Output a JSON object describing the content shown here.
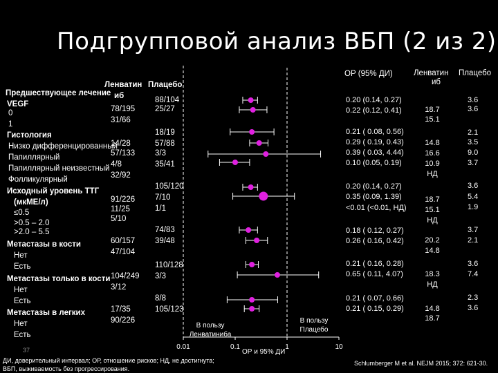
{
  "slide": {
    "title": "Подгрупповой анализ ВБП (2 из 2)",
    "page_number": "37",
    "footnote_line1": "ДИ, доверительный интервал; ОР, отношение рисков; НД, не достигнута;",
    "footnote_line2": "ВБП, выживаемость без прогрессирования.",
    "citation": "Schlumberger M et al. NEJM 2015; 372: 621-30."
  },
  "headers": {
    "lenvatinib": "Ленватин",
    "placebo": "Плацебо",
    "ib": "иб",
    "hr_ci": "ОР (95% ДИ)",
    "right_lenvatinib": "Ленватин",
    "right_placebo": "Плацебо",
    "right_ib": "иб"
  },
  "rows": [
    {
      "label": "Предшествующее лечение",
      "bold": true,
      "len_n": "",
      "pla_n": ""
    },
    {
      "label": "VEGF",
      "bold": true,
      "len_n": "",
      "pla_n": "88/104"
    },
    {
      "label": "0",
      "bold": false,
      "len_n": "78/195",
      "pla_n": "25/27"
    },
    {
      "label": "1",
      "bold": false,
      "len_n": "31/66",
      "pla_n": ""
    },
    {
      "label": "Гистология",
      "bold": true,
      "len_n": "",
      "pla_n": "18/19"
    },
    {
      "label": "Низко дифференцированный",
      "bold": false,
      "len_n": "14/28",
      "pla_n": "57/88"
    },
    {
      "label": "Папиллярный",
      "bold": false,
      "len_n": "57/133",
      "pla_n": "3/3"
    },
    {
      "label": "Папиллярный неизвестный",
      "bold": false,
      "len_n": "4/8",
      "pla_n": "35/41"
    },
    {
      "label": "Фолликулярный",
      "bold": false,
      "len_n": "32/92",
      "pla_n": ""
    },
    {
      "label": "Исходный уровень ТТГ",
      "bold": true,
      "len_n": "",
      "pla_n": "105/120"
    },
    {
      "label": "(мкМЕ/л)",
      "bold": true,
      "len_n": "91/226",
      "pla_n": "7/10"
    },
    {
      "label": "≤0.5",
      "bold": false,
      "len_n": "11/25",
      "pla_n": "1/1"
    },
    {
      "label": ">0.5 – 2.0",
      "bold": false,
      "len_n": "5/10",
      "pla_n": ""
    },
    {
      "label": ">2.0 – 5.5",
      "bold": false,
      "len_n": "",
      "pla_n": "74/83"
    },
    {
      "label": "Метастазы в кости",
      "bold": true,
      "len_n": "60/157",
      "pla_n": "39/48"
    },
    {
      "label": "Нет",
      "bold": false,
      "len_n": "47/104",
      "pla_n": ""
    },
    {
      "label": "Есть",
      "bold": false,
      "len_n": "",
      "pla_n": "110/128"
    },
    {
      "label": "Метастазы только в кости",
      "bold": true,
      "len_n": "104/249",
      "pla_n": "3/3"
    },
    {
      "label": "Нет",
      "bold": false,
      "len_n": "3/12",
      "pla_n": ""
    },
    {
      "label": "Есть",
      "bold": false,
      "len_n": "",
      "pla_n": "8/8"
    },
    {
      "label": "Метастазы в легких",
      "bold": true,
      "len_n": "17/35",
      "pla_n": "105/123"
    },
    {
      "label": "Нет",
      "bold": false,
      "len_n": "90/226",
      "pla_n": ""
    },
    {
      "label": "Есть",
      "bold": false,
      "len_n": "",
      "pla_n": ""
    }
  ],
  "chart_data": {
    "type": "forest",
    "x_scale": "log",
    "xlim": [
      0.01,
      10
    ],
    "xticks": [
      {
        "value": 0.01,
        "label": "0.01"
      },
      {
        "value": 0.1,
        "label": "0.1"
      },
      {
        "value": 1,
        "label": "1"
      },
      {
        "value": 10,
        "label": "10"
      }
    ],
    "xlabel": "ОР и 95% ДИ",
    "favors_left": "В пользу Ленватиниба",
    "favors_right": "В пользу Плацебо",
    "marker_color": "#e020e0",
    "points": [
      {
        "hr": 0.2,
        "lo": 0.14,
        "hi": 0.27,
        "hr_ci": "0.20 (0.14, 0.27)",
        "len_pfs": "",
        "pla_pfs": "3.6",
        "size": "small"
      },
      {
        "hr": 0.22,
        "lo": 0.12,
        "hi": 0.41,
        "hr_ci": "0.22 (0.12, 0.41)",
        "len_pfs": "18.7",
        "pla_pfs": "3.6",
        "size": "small"
      },
      {
        "hr": 0.21,
        "lo": 0.08,
        "hi": 0.56,
        "hr_ci": "0.21 ( 0.08, 0.56)",
        "len_pfs": "15.1",
        "pla_pfs": "2.1",
        "size": "small"
      },
      {
        "hr": 0.29,
        "lo": 0.19,
        "hi": 0.43,
        "hr_ci": "0.29 ( 0.19, 0.43)",
        "len_pfs": "14.8",
        "pla_pfs": "3.5",
        "size": "small"
      },
      {
        "hr": 0.39,
        "lo": 0.03,
        "hi": 4.44,
        "hr_ci": "0.39 ( 0.03, 4.44)",
        "len_pfs": "16.6",
        "pla_pfs": "9.0",
        "size": "small"
      },
      {
        "hr": 0.1,
        "lo": 0.05,
        "hi": 0.19,
        "hr_ci": "0.10 (0.05, 0.19)",
        "len_pfs": "10.9",
        "pla_pfs": "3.7",
        "size": "small"
      },
      {
        "hr": 0.2,
        "lo": 0.14,
        "hi": 0.27,
        "hr_ci": "0.20 (0.14, 0.27)",
        "len_pfs": "НД",
        "pla_pfs": "3.6",
        "size": "small"
      },
      {
        "hr": 0.35,
        "lo": 0.09,
        "hi": 1.39,
        "hr_ci": "0.35 (0.09, 1.39)",
        "len_pfs": "18.7",
        "pla_pfs": "5.4",
        "size": "large"
      },
      {
        "hr": null,
        "lo": null,
        "hi": null,
        "hr_ci": "<0.01 (<0.01, НД)",
        "len_pfs": "15.1",
        "pla_pfs": "1.9",
        "size": "none"
      },
      {
        "hr": 0.18,
        "lo": 0.12,
        "hi": 0.27,
        "hr_ci": "0.18 ( 0.12, 0.27)",
        "len_pfs": "НД",
        "pla_pfs": "3.7",
        "size": "small"
      },
      {
        "hr": 0.26,
        "lo": 0.16,
        "hi": 0.42,
        "hr_ci": "0.26 ( 0.16, 0.42)",
        "len_pfs": "20.2",
        "pla_pfs": "2.1",
        "size": "small"
      },
      {
        "hr": 0.21,
        "lo": 0.16,
        "hi": 0.28,
        "hr_ci": "0.21 ( 0.16, 0.28)",
        "len_pfs": "14.8",
        "pla_pfs": "3.6",
        "size": "small"
      },
      {
        "hr": 0.65,
        "lo": 0.11,
        "hi": 4.07,
        "hr_ci": "0.65 ( 0.11, 4.07)",
        "len_pfs": "18.3",
        "pla_pfs": "7.4",
        "size": "small"
      },
      {
        "hr": 0.21,
        "lo": 0.07,
        "hi": 0.66,
        "hr_ci": "0.21 ( 0.07, 0.66)",
        "len_pfs": "НД",
        "pla_pfs": "2.3",
        "size": "small"
      },
      {
        "hr": 0.21,
        "lo": 0.15,
        "hi": 0.29,
        "hr_ci": "0.21 ( 0.15, 0.29)",
        "len_pfs": "14.8",
        "pla_pfs": "3.6",
        "size": "small"
      },
      {
        "hr": null,
        "lo": null,
        "hi": null,
        "hr_ci": "",
        "len_pfs": "18.7",
        "pla_pfs": "",
        "size": "none"
      }
    ]
  }
}
